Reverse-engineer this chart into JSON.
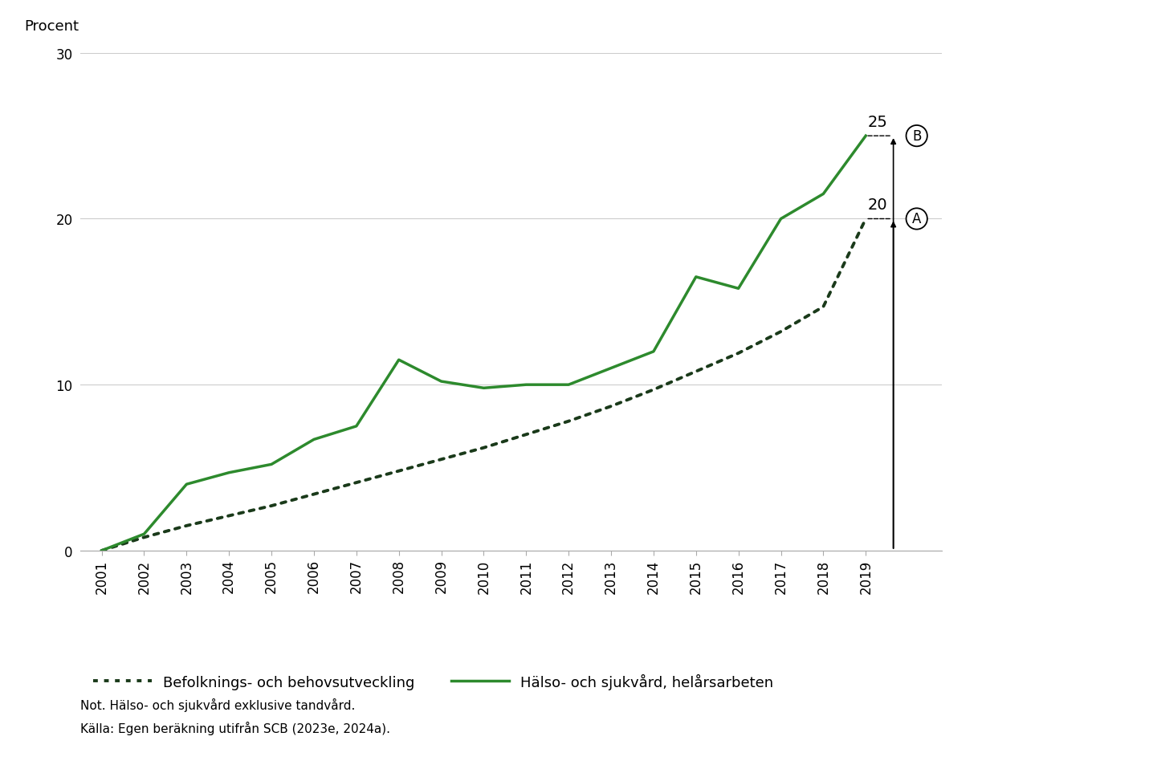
{
  "years": [
    2001,
    2002,
    2003,
    2004,
    2005,
    2006,
    2007,
    2008,
    2009,
    2010,
    2011,
    2012,
    2013,
    2014,
    2015,
    2016,
    2017,
    2018,
    2019
  ],
  "befolkning": [
    0.0,
    0.8,
    1.5,
    2.1,
    2.7,
    3.4,
    4.1,
    4.8,
    5.5,
    6.2,
    7.0,
    7.8,
    8.7,
    9.7,
    10.8,
    11.9,
    13.2,
    14.7,
    20.0
  ],
  "halso": [
    0.0,
    1.0,
    4.0,
    4.7,
    5.2,
    6.7,
    7.5,
    11.5,
    10.2,
    9.8,
    10.0,
    10.0,
    11.0,
    12.0,
    16.5,
    15.8,
    20.0,
    21.5,
    25.0
  ],
  "ylabel": "Procent",
  "ylim": [
    0,
    30
  ],
  "yticks": [
    0,
    10,
    20,
    30
  ],
  "annotation_A_value": 20,
  "annotation_B_value": 25,
  "legend_befolkning": "Befolknings- och behovsutveckling",
  "legend_halso": "Hälso- och sjukvård, helårsarbeten",
  "note_line1": "Not. Hälso- och sjukvård exklusive tandvård.",
  "note_line2": "Källa: Egen beräkning utifrån SCB (2023e, 2024a).",
  "background_color": "#ffffff",
  "grid_color": "#cccccc",
  "line_color_solid": "#2d8a2d",
  "line_color_dotted": "#1a3a1a"
}
